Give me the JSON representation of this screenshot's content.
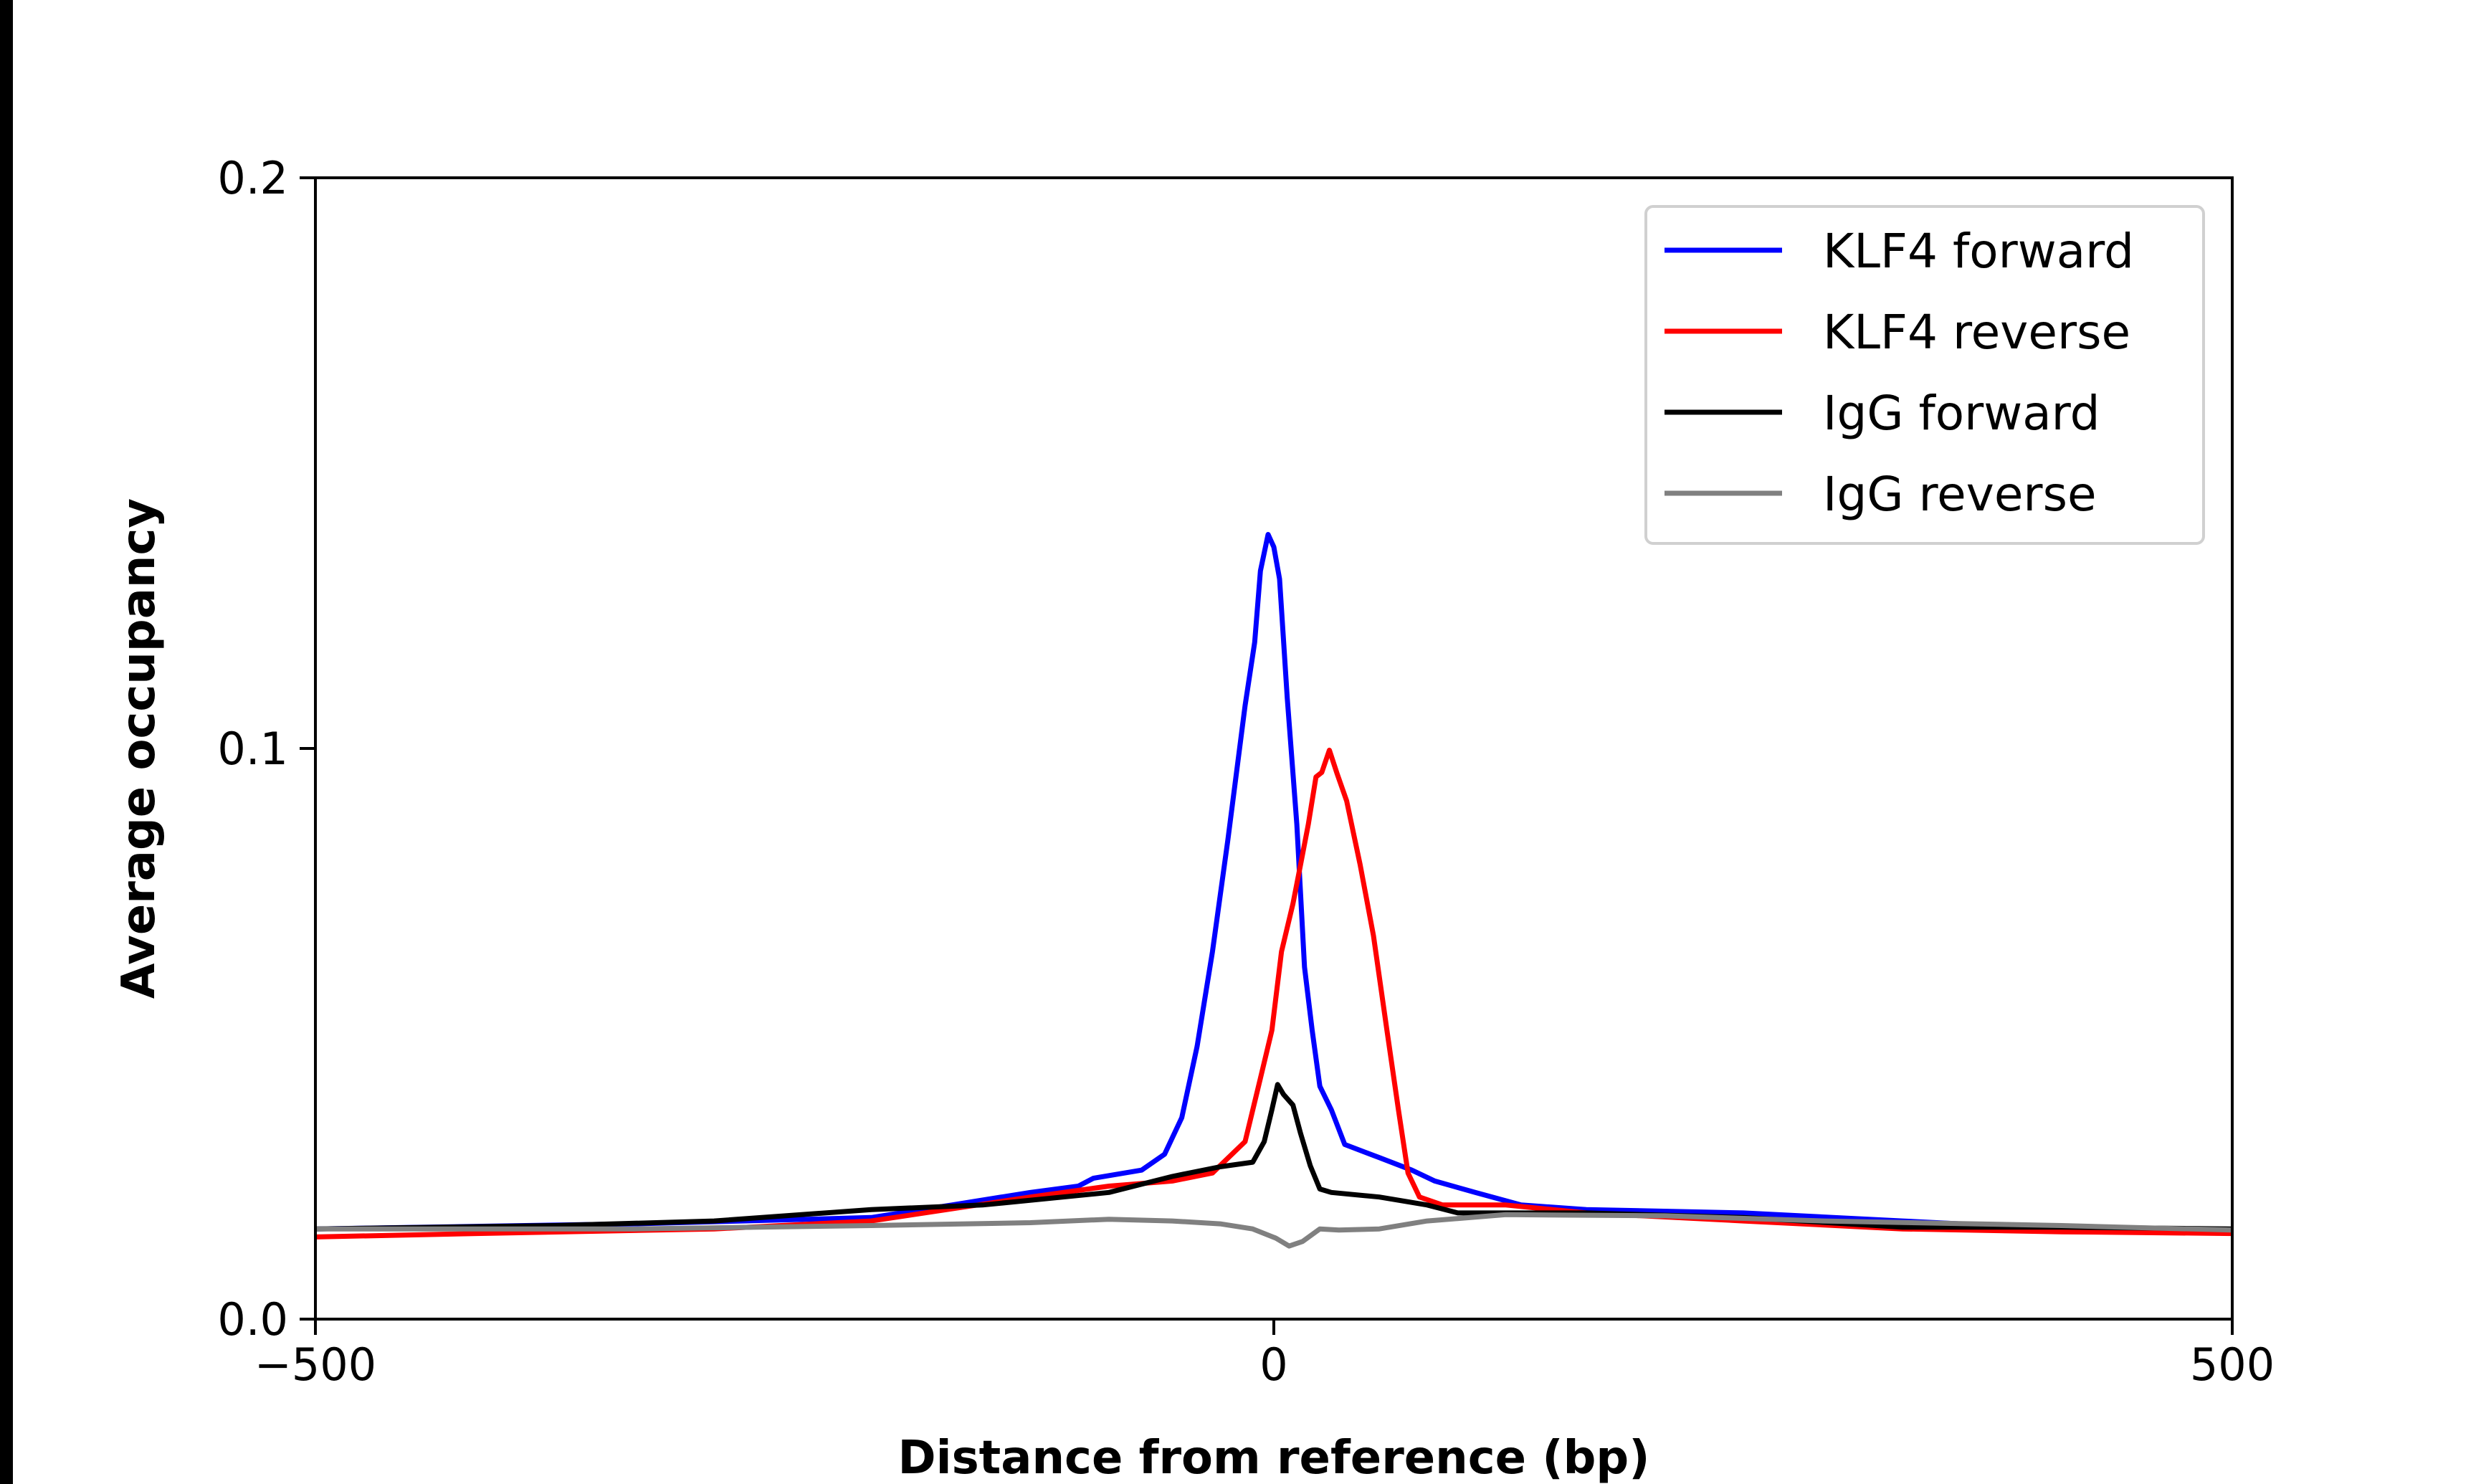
{
  "chart_data": {
    "type": "line",
    "title": "",
    "xlabel": "Distance from reference (bp)",
    "ylabel": "Average occupancy",
    "xlim": [
      -500,
      500
    ],
    "ylim": [
      0.0,
      0.2
    ],
    "xticks": [
      -500,
      0,
      500
    ],
    "xtick_labels": [
      "−500",
      "0",
      "500"
    ],
    "yticks": [
      0.0,
      0.1,
      0.2
    ],
    "ytick_labels": [
      "0.0",
      "0.1",
      "0.2"
    ],
    "grid": false,
    "legend_position": "top-right",
    "series": [
      {
        "name": "KLF4 forward",
        "color": "#0000ff",
        "x": [
          -500,
          -334,
          -210,
          -168,
          -127,
          -102,
          -94,
          -69,
          -57,
          -48,
          -40,
          -32,
          -24,
          -15,
          -10,
          -7,
          -3,
          0,
          3,
          7,
          12,
          16,
          20,
          24,
          30,
          37,
          55,
          72,
          84,
          105,
          129,
          163,
          245,
          328,
          411,
          500
        ],
        "y": [
          0.0158,
          0.0167,
          0.0178,
          0.02,
          0.0222,
          0.0233,
          0.0247,
          0.0261,
          0.0289,
          0.0353,
          0.0478,
          0.0644,
          0.0839,
          0.1075,
          0.1186,
          0.1311,
          0.1375,
          0.1353,
          0.1297,
          0.1089,
          0.0867,
          0.0617,
          0.0506,
          0.0408,
          0.0367,
          0.0306,
          0.0283,
          0.0261,
          0.0242,
          0.0222,
          0.02,
          0.0192,
          0.0186,
          0.0172,
          0.0158,
          0.0156
        ]
      },
      {
        "name": "KLF4 reverse",
        "color": "#ff0000",
        "x": [
          -500,
          -416,
          -292,
          -210,
          -127,
          -86,
          -53,
          -32,
          -15,
          -7,
          -1,
          4,
          10,
          14,
          18,
          22,
          25,
          29,
          33,
          38,
          45,
          52,
          59,
          65,
          70,
          76,
          88,
          121,
          163,
          245,
          328,
          411,
          500
        ],
        "y": [
          0.0144,
          0.015,
          0.0158,
          0.0172,
          0.0214,
          0.0233,
          0.0242,
          0.0256,
          0.0311,
          0.0422,
          0.0506,
          0.0644,
          0.0728,
          0.0797,
          0.0867,
          0.095,
          0.0958,
          0.0997,
          0.0956,
          0.0908,
          0.0797,
          0.0672,
          0.0506,
          0.0367,
          0.0256,
          0.0214,
          0.02,
          0.02,
          0.0186,
          0.0172,
          0.0158,
          0.0153,
          0.015
        ]
      },
      {
        "name": "IgG forward",
        "color": "#000000",
        "x": [
          -500,
          -375,
          -292,
          -210,
          -152,
          -86,
          -53,
          -28,
          -11,
          -5,
          -1,
          2,
          5,
          10,
          14,
          19,
          24,
          30,
          55,
          80,
          96,
          163,
          245,
          328,
          411,
          500
        ],
        "y": [
          0.0158,
          0.0164,
          0.0172,
          0.0192,
          0.02,
          0.0222,
          0.025,
          0.0267,
          0.0275,
          0.0311,
          0.0367,
          0.0411,
          0.0394,
          0.0375,
          0.0325,
          0.0269,
          0.0228,
          0.0222,
          0.0214,
          0.02,
          0.0186,
          0.0186,
          0.0178,
          0.0161,
          0.0161,
          0.0158
        ]
      },
      {
        "name": "IgG reverse",
        "color": "#808080",
        "x": [
          -500,
          -334,
          -210,
          -127,
          -86,
          -53,
          -28,
          -11,
          1,
          8,
          15,
          24,
          34,
          55,
          80,
          121,
          204,
          287,
          411,
          500
        ],
        "y": [
          0.0158,
          0.0158,
          0.0164,
          0.0169,
          0.0175,
          0.0172,
          0.0167,
          0.0158,
          0.0142,
          0.0128,
          0.0136,
          0.0158,
          0.0156,
          0.0158,
          0.0172,
          0.0183,
          0.0181,
          0.0172,
          0.0164,
          0.0156
        ]
      }
    ]
  }
}
